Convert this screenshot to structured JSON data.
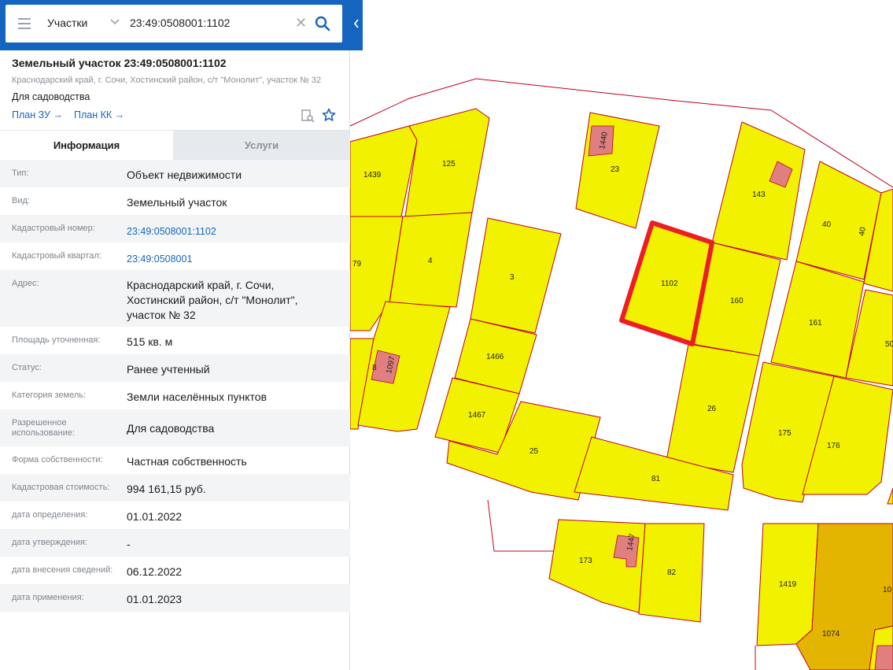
{
  "search": {
    "layer": "Участки",
    "query": "23:49:0508001:1102"
  },
  "icons": {
    "menu": "hamburger-icon",
    "dropdown": "chevron-down-icon",
    "clear": "close-icon",
    "search": "search-icon",
    "collapse": "chevron-left-icon",
    "document": "document-search-icon",
    "favorite": "star-icon"
  },
  "colors": {
    "brand": "#1565c0",
    "plot_fill": "#f2f200",
    "plot_border": "#c00020",
    "building": "#e07f7f",
    "selected_outline": "#ee1c24",
    "dark_plot": "#e3b400"
  },
  "object": {
    "title": "Земельный участок 23:49:0508001:1102",
    "address": "Краснодарский край, г. Сочи, Хостинский район, с/т \"Монолит\", участок № 32",
    "usage": "Для садоводства",
    "links": [
      "План ЗУ →",
      "План КК →"
    ]
  },
  "tabs": {
    "info": "Информация",
    "services": "Услуги"
  },
  "rows": [
    {
      "label": "Тип:",
      "value": "Объект недвижимости"
    },
    {
      "label": "Вид:",
      "value": "Земельный участок"
    },
    {
      "label": "Кадастровый номер:",
      "value": "23:49:0508001:1102"
    },
    {
      "label": "Кадастровый квартал:",
      "value": "23:49:0508001"
    },
    {
      "label": "Адрес:",
      "value": "Краснодарский край, г. Сочи, Хостинский район, с/т \"Монолит\", участок № 32"
    },
    {
      "label": "Площадь уточненная:",
      "value": "515 кв. м"
    },
    {
      "label": "Статус:",
      "value": "Ранее учтенный"
    },
    {
      "label": "Категория земель:",
      "value": "Земли населённых пунктов"
    },
    {
      "label": "Разрешенное использование:",
      "value": "Для садоводства"
    },
    {
      "label": "Форма собственности:",
      "value": "Частная собственность"
    },
    {
      "label": "Кадастровая стоимость:",
      "value": "994 161,15 руб."
    },
    {
      "label": "дата определения:",
      "value": "01.01.2022"
    },
    {
      "label": "дата утверждения:",
      "value": "-"
    },
    {
      "label": "дата внесения сведений:",
      "value": "06.12.2022"
    },
    {
      "label": "дата применения:",
      "value": "01.01.2023"
    }
  ],
  "map": {
    "plots": [
      "1102",
      "160",
      "143",
      "23",
      "1440",
      "125",
      "1439",
      "79",
      "4",
      "3",
      "1466",
      "1467",
      "25",
      "8",
      "1097",
      "26",
      "81",
      "175",
      "176",
      "161",
      "40",
      "50",
      "173",
      "1447",
      "82",
      "1419",
      "1074"
    ]
  }
}
